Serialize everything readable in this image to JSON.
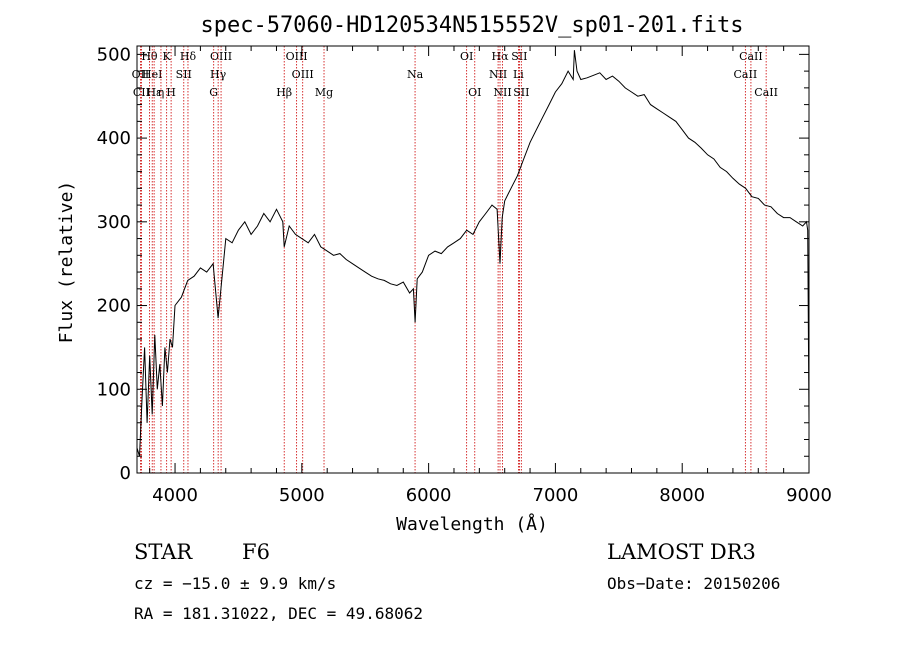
{
  "chart_data": {
    "type": "line",
    "title": "spec-57060-HD120534N515552V_sp01-201.fits",
    "xlabel": "Wavelength (Å)",
    "ylabel": "Flux (relative)",
    "xlim": [
      3700,
      9000
    ],
    "ylim": [
      0,
      510
    ],
    "x_ticks": [
      4000,
      5000,
      6000,
      7000,
      8000,
      9000
    ],
    "y_ticks": [
      0,
      100,
      200,
      300,
      400,
      500
    ],
    "series": [
      {
        "name": "flux",
        "x": [
          3700,
          3720,
          3740,
          3760,
          3780,
          3800,
          3820,
          3840,
          3860,
          3880,
          3900,
          3920,
          3940,
          3960,
          3980,
          4000,
          4050,
          4100,
          4150,
          4200,
          4250,
          4300,
          4340,
          4400,
          4450,
          4500,
          4550,
          4600,
          4650,
          4700,
          4750,
          4800,
          4850,
          4861,
          4900,
          4950,
          5000,
          5050,
          5100,
          5150,
          5200,
          5250,
          5300,
          5350,
          5400,
          5450,
          5500,
          5550,
          5600,
          5650,
          5700,
          5750,
          5800,
          5850,
          5880,
          5893,
          5910,
          5950,
          6000,
          6050,
          6100,
          6150,
          6200,
          6250,
          6300,
          6350,
          6400,
          6450,
          6500,
          6540,
          6563,
          6580,
          6600,
          6650,
          6700,
          6750,
          6800,
          6850,
          6900,
          6950,
          7000,
          7050,
          7100,
          7140,
          7150,
          7170,
          7200,
          7250,
          7300,
          7350,
          7400,
          7450,
          7500,
          7550,
          7600,
          7650,
          7700,
          7750,
          7800,
          7850,
          7900,
          7950,
          8000,
          8050,
          8100,
          8150,
          8200,
          8250,
          8300,
          8350,
          8400,
          8450,
          8500,
          8550,
          8600,
          8650,
          8700,
          8750,
          8800,
          8850,
          8900,
          8950,
          8980,
          8990,
          9000
        ],
        "values": [
          30,
          20,
          90,
          150,
          60,
          140,
          70,
          165,
          100,
          130,
          80,
          150,
          120,
          160,
          150,
          200,
          210,
          230,
          235,
          245,
          240,
          250,
          185,
          280,
          275,
          290,
          300,
          285,
          295,
          310,
          300,
          315,
          300,
          270,
          295,
          285,
          280,
          275,
          285,
          270,
          265,
          260,
          262,
          255,
          250,
          245,
          240,
          235,
          232,
          230,
          226,
          224,
          228,
          215,
          220,
          180,
          232,
          240,
          260,
          265,
          262,
          270,
          275,
          280,
          290,
          285,
          300,
          310,
          320,
          315,
          250,
          305,
          325,
          340,
          355,
          375,
          395,
          410,
          425,
          440,
          455,
          465,
          480,
          470,
          505,
          480,
          470,
          472,
          475,
          478,
          470,
          474,
          468,
          460,
          455,
          450,
          452,
          440,
          435,
          430,
          425,
          420,
          410,
          400,
          395,
          388,
          380,
          375,
          365,
          360,
          352,
          345,
          340,
          330,
          328,
          320,
          318,
          310,
          305,
          305,
          300,
          295,
          300,
          290,
          60
        ]
      }
    ],
    "vlines": [
      {
        "label": "Hθ",
        "x": 3798,
        "row": 0
      },
      {
        "label": "OII",
        "x": 3727,
        "row": 1
      },
      {
        "label": "CII",
        "x": 3735,
        "row": 2
      },
      {
        "label": "Hε",
        "x": 3835,
        "row": 2
      },
      {
        "label": "HeI",
        "x": 3820,
        "row": 1
      },
      {
        "label": "K",
        "x": 3934,
        "row": 0
      },
      {
        "label": "η",
        "x": 3889,
        "row": 2
      },
      {
        "label": "H",
        "x": 3969,
        "row": 2
      },
      {
        "label": "SII",
        "x": 4069,
        "row": 1
      },
      {
        "label": "Hδ",
        "x": 4102,
        "row": 0
      },
      {
        "label": "OIII",
        "x": 4363,
        "row": 0
      },
      {
        "label": "Hγ",
        "x": 4340,
        "row": 1
      },
      {
        "label": "G",
        "x": 4305,
        "row": 2
      },
      {
        "label": "Hβ",
        "x": 4861,
        "row": 2
      },
      {
        "label": "OIII",
        "x": 4959,
        "row": 0
      },
      {
        "label": "OIII",
        "x": 5007,
        "row": 1
      },
      {
        "label": "Mg",
        "x": 5175,
        "row": 2
      },
      {
        "label": "Na",
        "x": 5893,
        "row": 1
      },
      {
        "label": "OI",
        "x": 6300,
        "row": 0
      },
      {
        "label": "OI",
        "x": 6364,
        "row": 2
      },
      {
        "label": "Hα",
        "x": 6563,
        "row": 0
      },
      {
        "label": "NII",
        "x": 6548,
        "row": 1
      },
      {
        "label": "NII",
        "x": 6583,
        "row": 2
      },
      {
        "label": "SII",
        "x": 6716,
        "row": 0
      },
      {
        "label": "Li",
        "x": 6708,
        "row": 1
      },
      {
        "label": "SII",
        "x": 6731,
        "row": 2
      },
      {
        "label": "CaII",
        "x": 8542,
        "row": 0
      },
      {
        "label": "CaII",
        "x": 8498,
        "row": 1
      },
      {
        "label": "CaII",
        "x": 8662,
        "row": 2
      }
    ]
  },
  "info": {
    "class": "STAR",
    "subclass": "F6",
    "survey": "LAMOST DR3",
    "cz": "cz = −15.0 ± 9.9 km/s",
    "obs_date": "Obs−Date: 20150206",
    "radec": "RA = 181.31022, DEC =  49.68062"
  },
  "colors": {
    "line": "#000000",
    "vline": "#cc0000",
    "axis": "#000000"
  }
}
